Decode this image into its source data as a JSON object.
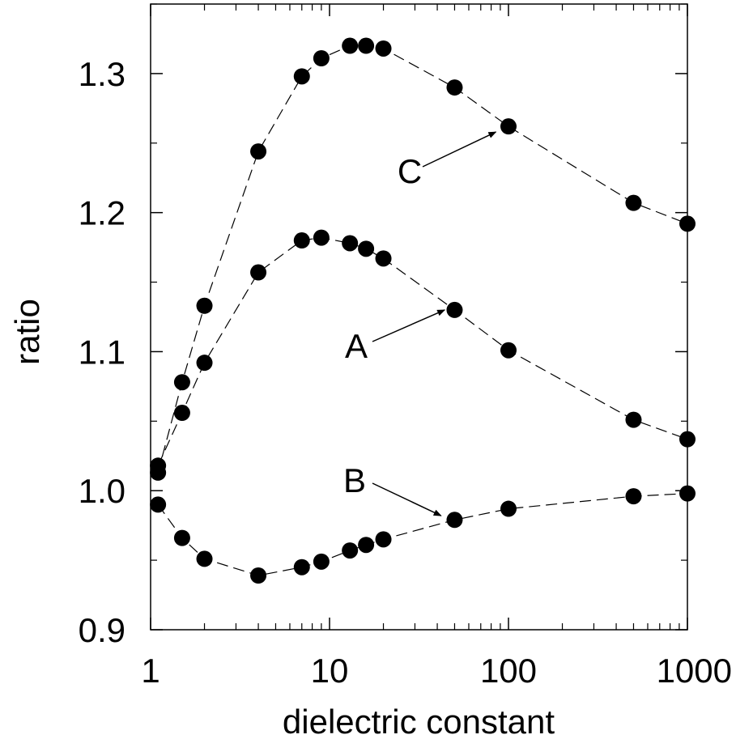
{
  "chart_data": {
    "type": "scatter",
    "xlabel": "dielectric constant",
    "ylabel": "ratio",
    "xscale": "log",
    "xlim": [
      1,
      1000
    ],
    "ylim": [
      0.9,
      1.35
    ],
    "xticks": [
      {
        "value": 1,
        "label": "1"
      },
      {
        "value": 10,
        "label": "10"
      },
      {
        "value": 100,
        "label": "100"
      },
      {
        "value": 1000,
        "label": "1000"
      }
    ],
    "yticks": [
      {
        "value": 0.9,
        "label": "0.9"
      },
      {
        "value": 1.0,
        "label": "1.0"
      },
      {
        "value": 1.1,
        "label": "1.1"
      },
      {
        "value": 1.2,
        "label": "1.2"
      },
      {
        "value": 1.3,
        "label": "1.3"
      }
    ],
    "grid": false,
    "line_style": "dashed",
    "marker": "filled-circle",
    "series": [
      {
        "name": "C",
        "x": [
          1.1,
          1.5,
          2,
          4,
          7,
          9,
          13,
          16,
          20,
          50,
          100,
          500,
          1000
        ],
        "y": [
          1.013,
          1.078,
          1.133,
          1.244,
          1.298,
          1.311,
          1.32,
          1.32,
          1.318,
          1.29,
          1.262,
          1.207,
          1.192
        ]
      },
      {
        "name": "A",
        "x": [
          1.1,
          1.5,
          2,
          4,
          7,
          9,
          13,
          16,
          20,
          50,
          100,
          500,
          1000
        ],
        "y": [
          1.018,
          1.056,
          1.092,
          1.157,
          1.18,
          1.182,
          1.178,
          1.174,
          1.167,
          1.13,
          1.101,
          1.051,
          1.037
        ]
      },
      {
        "name": "B",
        "x": [
          1.1,
          1.5,
          2,
          4,
          7,
          9,
          13,
          16,
          20,
          50,
          100,
          500,
          1000
        ],
        "y": [
          0.99,
          0.966,
          0.951,
          0.939,
          0.945,
          0.949,
          0.957,
          0.961,
          0.965,
          0.979,
          0.987,
          0.996,
          0.998
        ]
      }
    ],
    "annotations": [
      {
        "text": "C",
        "arrow_to": {
          "x": 85,
          "y": 1.258
        }
      },
      {
        "text": "A",
        "arrow_to": {
          "x": 44,
          "y": 1.13
        }
      },
      {
        "text": "B",
        "arrow_to": {
          "x": 42,
          "y": 0.982
        }
      }
    ]
  }
}
